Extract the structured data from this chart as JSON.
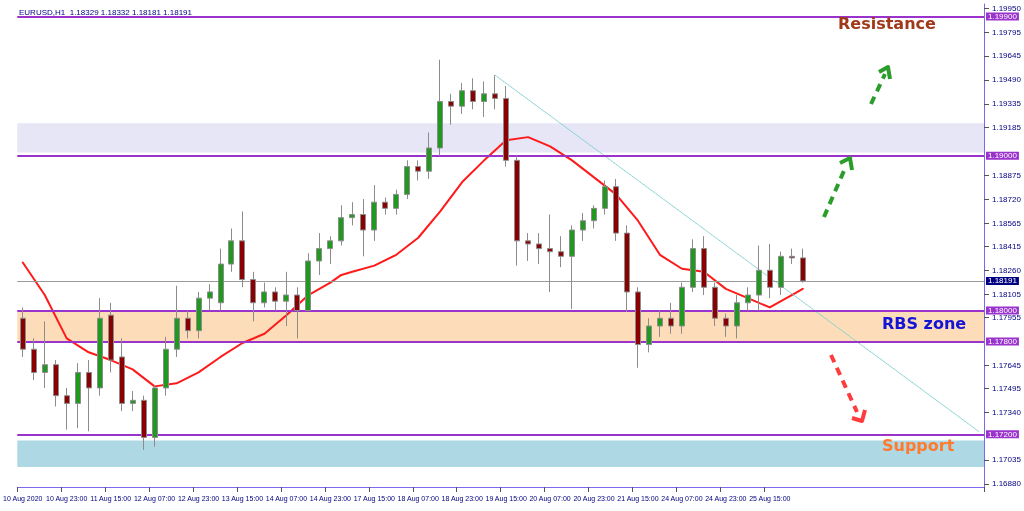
{
  "chart_data": {
    "type": "candlestick",
    "title": "EURUSD,H1  1.18329 1.18332 1.18181 1.18191",
    "categories": [
      "10 Aug 2020",
      null,
      null,
      null,
      "10 Aug 23:00",
      null,
      null,
      null,
      "11 Aug 15:00",
      null,
      null,
      null,
      "12 Aug 07:00",
      null,
      null,
      null,
      "12 Aug 23:00",
      null,
      null,
      null,
      "13 Aug 15:00",
      null,
      null,
      null,
      "14 Aug 07:00",
      null,
      null,
      null,
      "14 Aug 23:00",
      null,
      null,
      null,
      "17 Aug 15:00",
      null,
      null,
      null,
      "18 Aug 07:00",
      null,
      null,
      null,
      "18 Aug 23:00",
      null,
      null,
      null,
      "19 Aug 15:00",
      null,
      null,
      null,
      "20 Aug 07:00",
      null,
      null,
      null,
      "20 Aug 23:00",
      null,
      null,
      null,
      "21 Aug 15:00",
      null,
      null,
      null,
      "24 Aug 07:00",
      null,
      null,
      null,
      "24 Aug 23:00",
      null,
      null,
      null,
      "25 Aug 15:00",
      null,
      null,
      null,
      null,
      null,
      null,
      null,
      null,
      null,
      null,
      null,
      null,
      null,
      null,
      null,
      null,
      null,
      null,
      null
    ],
    "series": [
      {
        "colors": [
          "#8b0000",
          "#8b0000",
          "#1f9a1f",
          "#8b0000",
          "#8b0000",
          "#1f9a1f",
          "#8b0000",
          "#1f9a1f",
          "#8b0000",
          "#8b0000",
          "#1f9a1f",
          "#8b0000",
          "#1f9a1f",
          "#1f9a1f",
          "#1f9a1f",
          "#8b0000",
          "#1f9a1f",
          "#1f9a1f",
          "#1f9a1f",
          "#1f9a1f",
          "#8b0000",
          "#8b0000",
          "#1f9a1f",
          "#8b0000",
          "#1f9a1f",
          "#8b0000",
          "#1f9a1f",
          "#1f9a1f",
          "#1f9a1f",
          "#1f9a1f",
          "#1f9a1f",
          "#8b0000",
          "#1f9a1f",
          "#8b0000",
          "#1f9a1f",
          "#1f9a1f",
          "#8b0000",
          "#1f9a1f",
          "#1f9a1f",
          "#8b0000",
          "#1f9a1f",
          "#8b0000",
          "#1f9a1f",
          "#8b0000",
          "#8b0000",
          "#8b0000",
          "#8b0000",
          "#8b0000",
          "#8b0000",
          "#8b0000",
          "#1f9a1f",
          "#1f9a1f",
          "#1f9a1f",
          "#1f9a1f",
          "#8b0000",
          "#8b0000",
          "#8b0000",
          "#1f9a1f",
          "#1f9a1f",
          "#8b0000",
          "#1f9a1f",
          "#1f9a1f",
          "#8b0000",
          "#8b0000",
          "#8b0000",
          "#1f9a1f",
          "#1f9a1f",
          "#1f9a1f",
          "#8b0000",
          "#1f9a1f",
          "#8b0000",
          "#8b0000",
          null,
          null,
          null,
          null,
          null,
          null,
          null,
          null,
          null,
          null,
          null,
          null,
          null,
          null,
          null,
          null
        ],
        "ohlc": [
          [
            1.1795,
            1.1802,
            1.177,
            1.1775
          ],
          [
            1.1775,
            1.1782,
            1.1755,
            1.176
          ],
          [
            1.176,
            1.1793,
            1.175,
            1.1765
          ],
          [
            1.1765,
            1.1768,
            1.1738,
            1.1745
          ],
          [
            1.1745,
            1.175,
            1.1723,
            1.174
          ],
          [
            1.174,
            1.1766,
            1.1724,
            1.176
          ],
          [
            1.176,
            1.1768,
            1.1722,
            1.175
          ],
          [
            1.175,
            1.1808,
            1.1745,
            1.1795
          ],
          [
            1.1797,
            1.1805,
            1.176,
            1.1768
          ],
          [
            1.177,
            1.1782,
            1.1735,
            1.174
          ],
          [
            1.174,
            1.1748,
            1.1735,
            1.1742
          ],
          [
            1.1742,
            1.1745,
            1.171,
            1.1718
          ],
          [
            1.1718,
            1.1752,
            1.1712,
            1.175
          ],
          [
            1.175,
            1.1783,
            1.1745,
            1.1775
          ],
          [
            1.1775,
            1.1816,
            1.177,
            1.1795
          ],
          [
            1.1795,
            1.18,
            1.1782,
            1.1787
          ],
          [
            1.1787,
            1.1812,
            1.1782,
            1.1808
          ],
          [
            1.1808,
            1.1817,
            1.18,
            1.1812
          ],
          [
            1.1805,
            1.184,
            1.18,
            1.183
          ],
          [
            1.183,
            1.1853,
            1.1825,
            1.1845
          ],
          [
            1.1845,
            1.1864,
            1.1815,
            1.182
          ],
          [
            1.182,
            1.1825,
            1.1793,
            1.1805
          ],
          [
            1.1805,
            1.1818,
            1.1802,
            1.1812
          ],
          [
            1.1812,
            1.1815,
            1.18,
            1.1806
          ],
          [
            1.1806,
            1.1825,
            1.179,
            1.181
          ],
          [
            1.181,
            1.1815,
            1.1782,
            1.18
          ],
          [
            1.18,
            1.1837,
            1.18,
            1.1832
          ],
          [
            1.1832,
            1.185,
            1.1823,
            1.184
          ],
          [
            1.184,
            1.1848,
            1.183,
            1.1845
          ],
          [
            1.1845,
            1.1868,
            1.1842,
            1.186
          ],
          [
            1.186,
            1.187,
            1.1855,
            1.1862
          ],
          [
            1.1862,
            1.1872,
            1.1835,
            1.1852
          ],
          [
            1.1852,
            1.1881,
            1.1845,
            1.187
          ],
          [
            1.187,
            1.1873,
            1.1862,
            1.1866
          ],
          [
            1.1866,
            1.1878,
            1.1862,
            1.1875
          ],
          [
            1.1875,
            1.1897,
            1.1872,
            1.1893
          ],
          [
            1.1893,
            1.1897,
            1.1884,
            1.189
          ],
          [
            1.189,
            1.1915,
            1.1885,
            1.1905
          ],
          [
            1.1905,
            1.1962,
            1.19,
            1.1935
          ],
          [
            1.1935,
            1.194,
            1.192,
            1.1932
          ],
          [
            1.1932,
            1.1947,
            1.1927,
            1.1942
          ],
          [
            1.1942,
            1.195,
            1.193,
            1.1935
          ],
          [
            1.1935,
            1.1948,
            1.1925,
            1.194
          ],
          [
            1.194,
            1.1952,
            1.193,
            1.1937
          ],
          [
            1.1937,
            1.1945,
            1.1893,
            1.1897
          ],
          [
            1.1897,
            1.19,
            1.1829,
            1.1845
          ],
          [
            1.1845,
            1.185,
            1.1832,
            1.1843
          ],
          [
            1.1843,
            1.185,
            1.183,
            1.184
          ],
          [
            1.184,
            1.1862,
            1.1812,
            1.1838
          ],
          [
            1.1838,
            1.1848,
            1.1828,
            1.1835
          ],
          [
            1.1835,
            1.1855,
            1.1801,
            1.1852
          ],
          [
            1.1852,
            1.1863,
            1.1845,
            1.1858
          ],
          [
            1.1858,
            1.1868,
            1.1853,
            1.1866
          ],
          [
            1.1866,
            1.1884,
            1.1862,
            1.188
          ],
          [
            1.188,
            1.1885,
            1.1845,
            1.185
          ],
          [
            1.185,
            1.1855,
            1.1799,
            1.1812
          ],
          [
            1.1812,
            1.1815,
            1.1763,
            1.1778
          ],
          [
            1.1778,
            1.1795,
            1.1773,
            1.179
          ],
          [
            1.179,
            1.18,
            1.1783,
            1.1795
          ],
          [
            1.1795,
            1.1805,
            1.1785,
            1.179
          ],
          [
            1.179,
            1.1818,
            1.1785,
            1.1815
          ],
          [
            1.1815,
            1.1846,
            1.1812,
            1.184
          ],
          [
            1.184,
            1.1848,
            1.181,
            1.1815
          ],
          [
            1.1815,
            1.1818,
            1.179,
            1.1795
          ],
          [
            1.1795,
            1.1798,
            1.1783,
            1.179
          ],
          [
            1.179,
            1.181,
            1.1782,
            1.1805
          ],
          [
            1.1805,
            1.1815,
            1.18,
            1.181
          ],
          [
            1.181,
            1.1842,
            1.18,
            1.1826
          ],
          [
            1.1826,
            1.1843,
            1.1808,
            1.1815
          ],
          [
            1.1815,
            1.1838,
            1.181,
            1.1835
          ],
          [
            1.1835,
            1.184,
            1.183,
            1.1834
          ],
          [
            1.1834,
            1.184,
            1.1818,
            1.18191
          ],
          null,
          null,
          null,
          null,
          null,
          null,
          null,
          null,
          null,
          null,
          null,
          null,
          null,
          null,
          null,
          null
        ]
      },
      {
        "type": "line",
        "color": "#ff1a1a",
        "values": [
          1.1831,
          null,
          1.181,
          null,
          1.1782,
          null,
          1.1773,
          null,
          1.1768,
          null,
          1.1762,
          null,
          1.1751,
          null,
          1.1753,
          null,
          1.176,
          null,
          1.177,
          null,
          1.1779,
          null,
          1.1785,
          null,
          1.1797,
          null,
          1.181,
          null,
          1.1818,
          1.1823,
          1.1825,
          null,
          1.1829,
          null,
          1.1836,
          null,
          1.1847,
          null,
          1.1864,
          null,
          1.1883,
          null,
          1.1897,
          null,
          1.191,
          null,
          1.1912,
          null,
          1.1906,
          null,
          1.1897,
          null,
          1.1886,
          null,
          1.1875,
          null,
          1.1858,
          null,
          1.1836,
          null,
          1.1827,
          null,
          1.1825,
          null,
          1.1814,
          null,
          1.1808,
          null,
          1.1802,
          null,
          1.181,
          1.1814,
          null,
          null,
          null,
          null,
          null,
          null,
          null,
          null,
          null,
          null,
          null,
          null,
          null,
          null,
          null,
          null
        ]
      },
      {
        "type": "line",
        "color": "#7fcfcf",
        "line_style": "dotted",
        "values": [
          null,
          null,
          null,
          null,
          null,
          null,
          null,
          null,
          null,
          null,
          null,
          null,
          null,
          null,
          null,
          null,
          null,
          null,
          null,
          null,
          null,
          null,
          null,
          null,
          null,
          null,
          null,
          null,
          null,
          null,
          null,
          null,
          null,
          null,
          null,
          null,
          null,
          null,
          null,
          null,
          null,
          null,
          null,
          1.1952,
          null,
          null,
          null,
          null,
          null,
          null,
          null,
          null,
          null,
          null,
          null,
          null,
          null,
          null,
          null,
          null,
          null,
          null,
          null,
          null,
          null,
          null,
          null,
          null,
          null,
          null,
          null,
          null,
          null,
          null,
          null,
          null,
          null,
          null,
          null,
          null,
          null,
          null,
          null,
          null,
          null,
          null,
          null,
          1.1722
        ]
      }
    ],
    "ylim": [
      1.1686,
      1.1998
    ],
    "yticks": [
      {
        "value": 1.1688,
        "label": "1.16880"
      },
      1.17035,
      {
        "value": 1.1734,
        "label": "1.17340"
      },
      1.17495,
      1.17645,
      1.17955,
      1.18105,
      {
        "value": 1.1826,
        "label": "1.18260"
      },
      1.18415,
      1.18565,
      {
        "value": 1.1872,
        "label": "1.18720"
      },
      1.18875,
      1.19185,
      1.19335,
      {
        "value": 1.1949,
        "label": "1.19490"
      },
      1.19645,
      1.19795,
      {
        "value": 1.1995,
        "label": "1.19950"
      }
    ],
    "ref_lines": [
      {
        "axis": "y",
        "value": 1.199,
        "label": "1.19900",
        "color": "#9933cc"
      },
      {
        "axis": "y",
        "value": 1.19,
        "label": "1.19000",
        "color": "#9933cc"
      },
      {
        "axis": "y",
        "value": 1.18,
        "label": "1.18000",
        "color": "#9933cc"
      },
      {
        "axis": "y",
        "value": 1.178,
        "label": "1.17800",
        "color": "#9933cc"
      },
      {
        "axis": "y",
        "value": 1.172,
        "label": "1.17200",
        "color": "#9933cc"
      },
      {
        "axis": "y",
        "value": 1.18191,
        "label": "1.18191",
        "color": "#9a9a9a"
      }
    ],
    "bands": [
      {
        "axis": "y",
        "from": 1.1902,
        "to": 1.1921,
        "color": "#e6e6f7"
      },
      {
        "axis": "y",
        "from": 1.178,
        "to": 1.18,
        "color": "#fddcb9"
      },
      {
        "axis": "y",
        "from": 1.1699,
        "to": 1.1716,
        "color": "#aed8e3"
      }
    ],
    "annotations": [
      "Resistance",
      "RBS zone",
      "Support"
    ]
  }
}
